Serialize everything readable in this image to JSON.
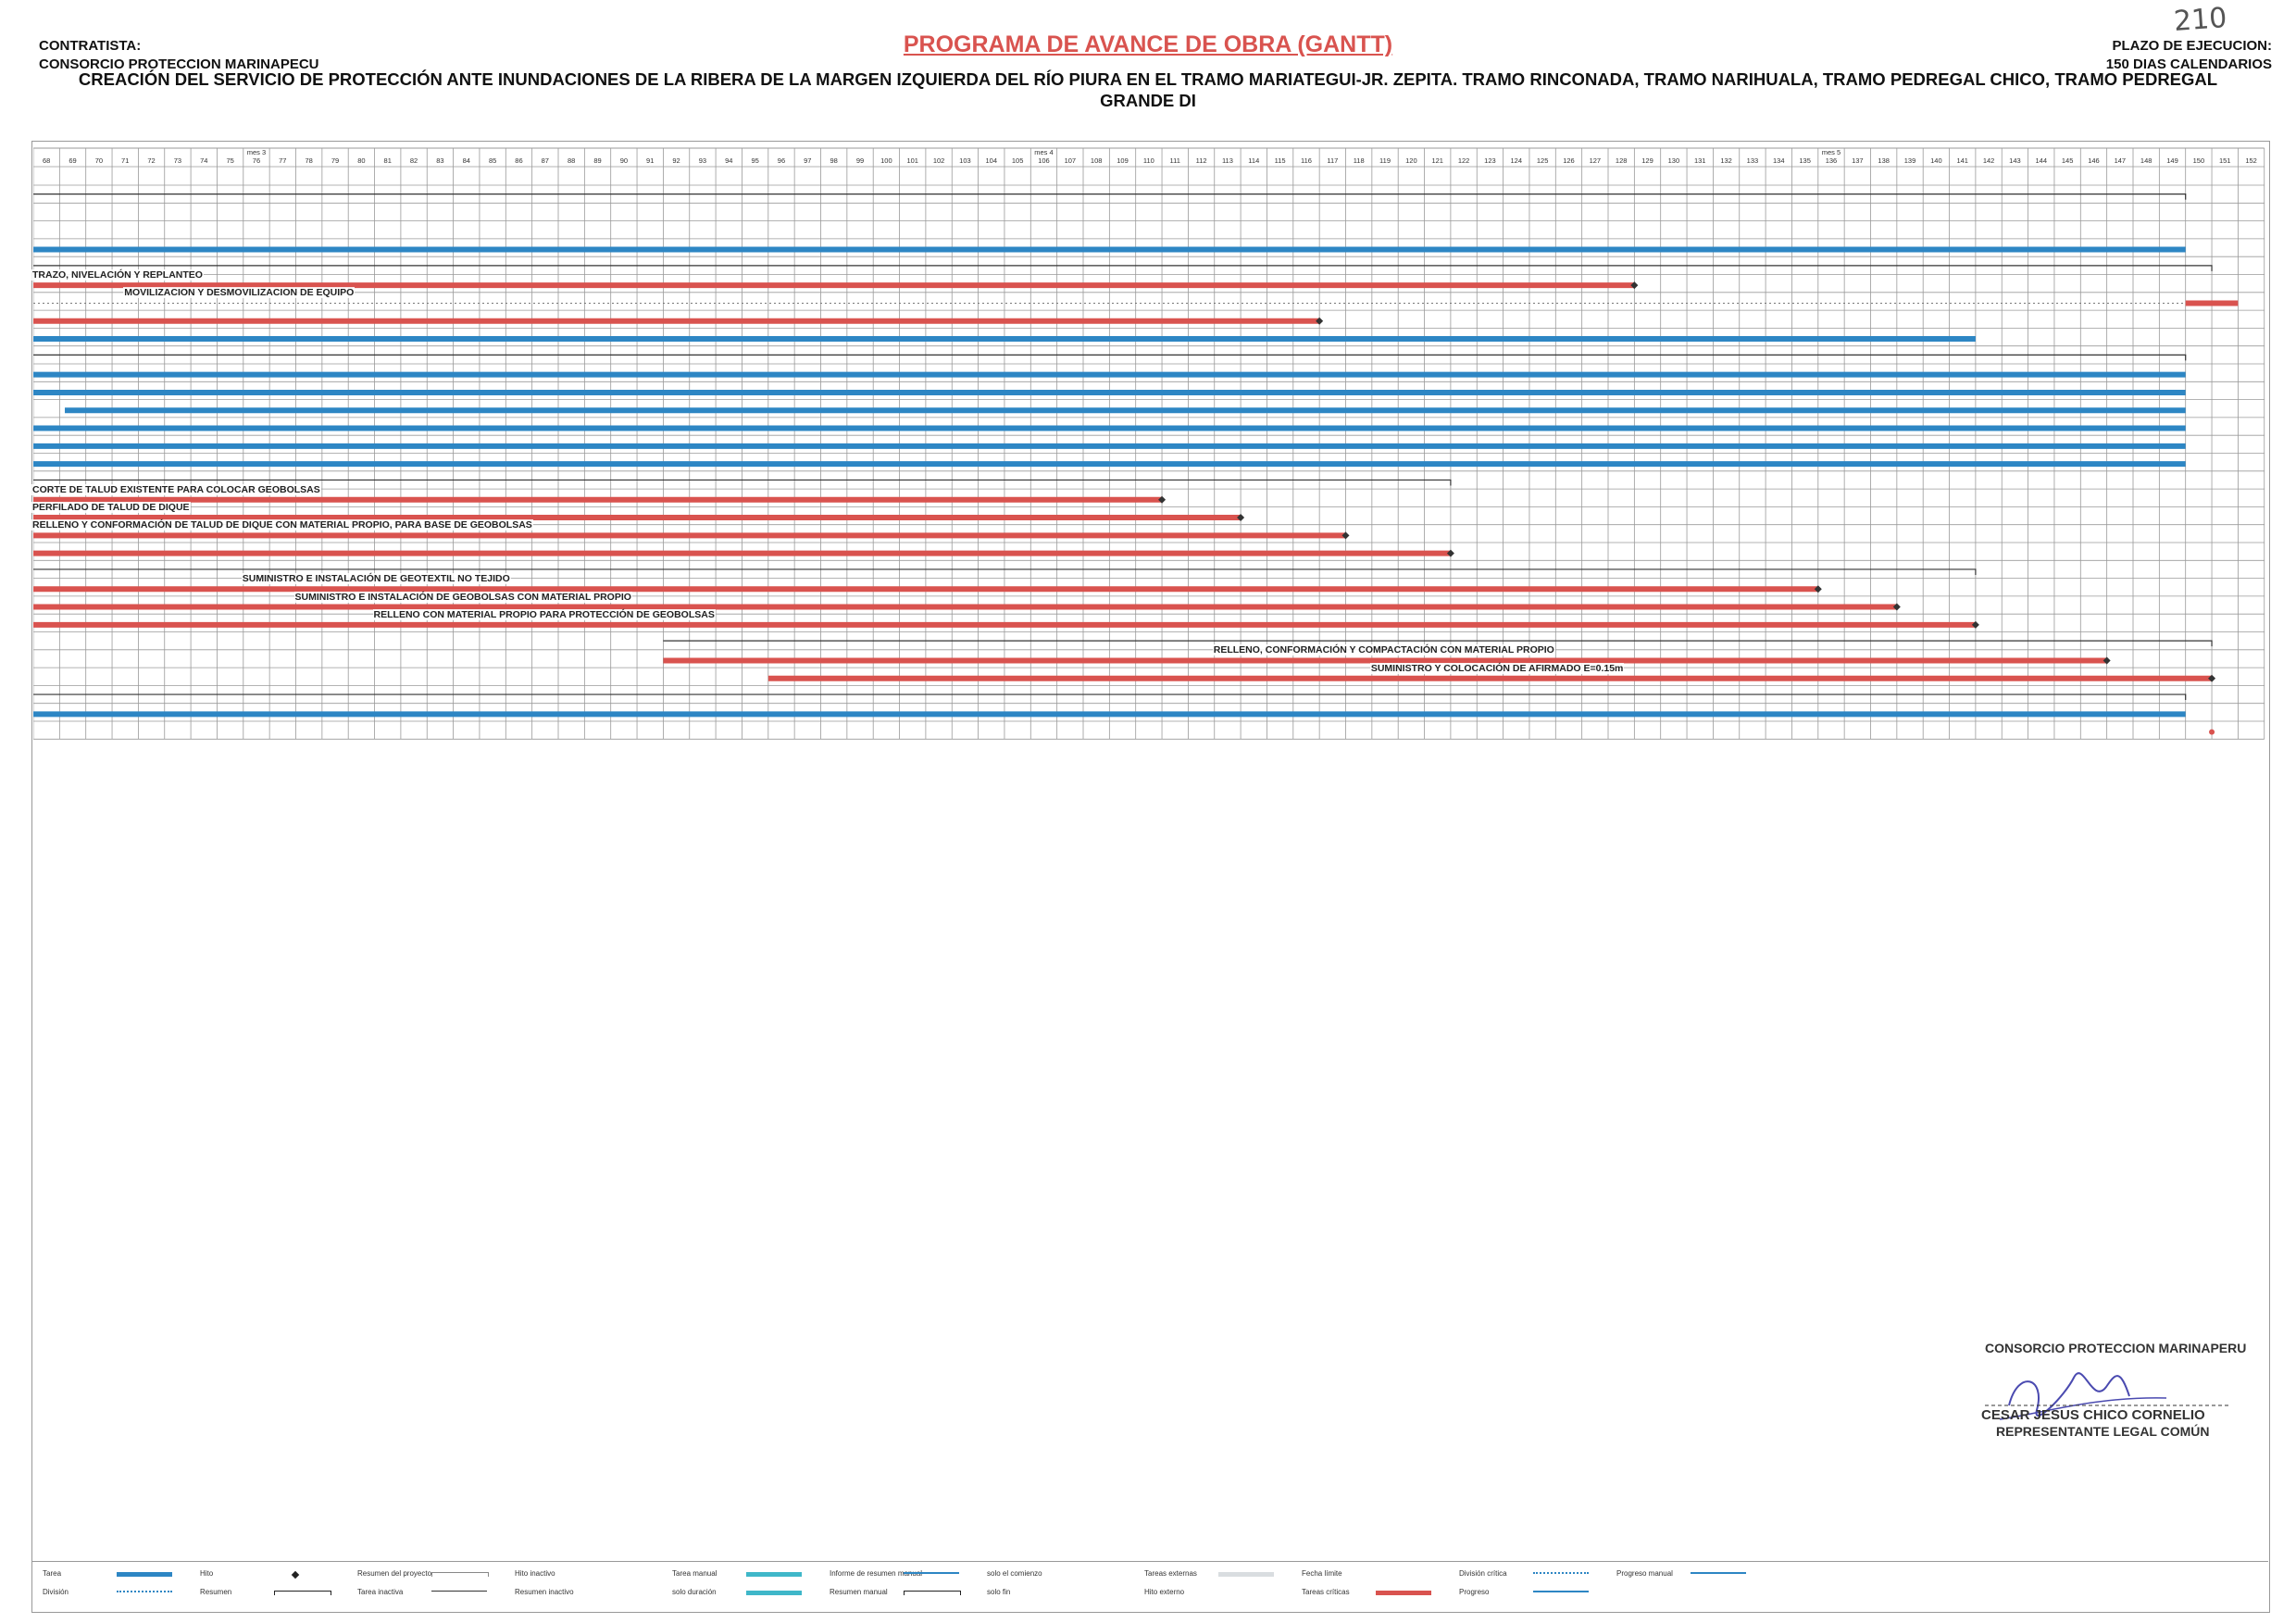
{
  "header": {
    "contractor_label": "CONTRATISTA:",
    "contractor_name": "CONSORCIO PROTECCION MARINAPECU",
    "title": "PROGRAMA DE AVANCE DE OBRA (GANTT)",
    "project_name": "CREACIÓN DEL SERVICIO DE PROTECCIÓN ANTE INUNDACIONES DE LA RIBERA DE LA MARGEN IZQUIERDA DEL RÍO PIURA EN EL TRAMO MARIATEGUI-JR. ZEPITA. TRAMO RINCONADA, TRAMO NARIHUALA, TRAMO PEDREGAL CHICO, TRAMO PEDREGAL GRANDE DI",
    "term_label": "PLAZO DE EJECUCION:",
    "term_value": "150 DIAS CALENDARIOS",
    "page_number": "210"
  },
  "timeline": {
    "first_day": 68,
    "last_day": 152,
    "months": [
      {
        "label": "mes 3",
        "day": 76
      },
      {
        "label": "mes 4",
        "day": 106
      },
      {
        "label": "mes 5",
        "day": 136
      }
    ]
  },
  "colors": {
    "summary_bar": "#2d86c4",
    "critical_bar": "#d9534f",
    "grid": "#9a9a9a",
    "title_red": "#d9534f"
  },
  "rows": [
    {
      "type": "summary_bracket",
      "end": 149
    },
    {
      "type": "none"
    },
    {
      "type": "none"
    },
    {
      "type": "summary",
      "end": 149
    },
    {
      "type": "summary_bracket",
      "end": 150
    },
    {
      "type": "critical",
      "end": 128,
      "label": "TRAZO, NIVELACIÓN Y REPLANTEO",
      "label_day": 68
    },
    {
      "type": "dotted",
      "end": 151,
      "label": "MOVILIZACION Y DESMOVILIZACION DE EQUIPO",
      "label_day": 71.5,
      "mark_end": 150
    },
    {
      "type": "critical",
      "end": 116
    },
    {
      "type": "summary",
      "end": 141
    },
    {
      "type": "summary_bracket",
      "end": 149
    },
    {
      "type": "summary",
      "end": 149
    },
    {
      "type": "summary",
      "end": 149
    },
    {
      "type": "summary",
      "end": 149,
      "start": 69.2
    },
    {
      "type": "summary",
      "end": 149
    },
    {
      "type": "summary",
      "end": 149
    },
    {
      "type": "summary",
      "end": 149
    },
    {
      "type": "summary_bracket",
      "end": 121
    },
    {
      "type": "critical",
      "end": 110,
      "label": "CORTE DE TALUD EXISTENTE PARA COLOCAR GEOBOLSAS",
      "label_day": 68
    },
    {
      "type": "critical",
      "end": 113,
      "label": "PERFILADO DE TALUD DE DIQUE",
      "label_day": 68
    },
    {
      "type": "critical",
      "end": 117,
      "label": "RELLENO Y CONFORMACIÓN DE TALUD DE DIQUE CON MATERIAL PROPIO, PARA BASE DE GEOBOLSAS",
      "label_day": 68
    },
    {
      "type": "critical",
      "end": 121
    },
    {
      "type": "summary_bracket",
      "end": 141
    },
    {
      "type": "critical",
      "end": 135,
      "label": "SUMINISTRO E INSTALACIÓN DE GEOTEXTIL NO TEJIDO",
      "label_day": 76
    },
    {
      "type": "critical",
      "end": 138,
      "label": "SUMINISTRO E INSTALACIÓN DE GEOBOLSAS CON MATERIAL PROPIO",
      "label_day": 78
    },
    {
      "type": "critical",
      "end": 141,
      "label": "RELLENO CON MATERIAL PROPIO PARA PROTECCIÓN DE GEOBOLSAS",
      "label_day": 81
    },
    {
      "type": "summary_bracket",
      "end": 150,
      "start": 92
    },
    {
      "type": "critical",
      "end": 146,
      "start": 92,
      "label": "RELLENO, CONFORMACIÓN Y COMPACTACIÓN CON MATERIAL PROPIO",
      "label_day": 113
    },
    {
      "type": "critical",
      "end": 150,
      "start": 96,
      "label": "SUMINISTRO Y COLOCACIÓN DE AFIRMADO E=0.15m",
      "label_day": 119
    },
    {
      "type": "summary_bracket",
      "end": 149
    },
    {
      "type": "summary",
      "end": 149
    },
    {
      "type": "milestone_dot",
      "end": 150
    }
  ],
  "signature": {
    "company": "CONSORCIO PROTECCION MARINAPERU",
    "name": "CESAR JESUS CHICO CORNELIO",
    "role": "REPRESENTANTE LEGAL COMÚN"
  },
  "legend": [
    {
      "label": "Tarea",
      "symbol": "summary"
    },
    {
      "label": "División",
      "symbol": "dotted"
    },
    {
      "label": "Hito",
      "symbol": "diamond"
    },
    {
      "label": "Resumen",
      "symbol": "bracket"
    },
    {
      "label": "Resumen del proyecto",
      "symbol": "bracket-light"
    },
    {
      "label": "Tarea inactiva",
      "symbol": "thin"
    },
    {
      "label": "Hito inactivo",
      "symbol": "none"
    },
    {
      "label": "Resumen inactivo",
      "symbol": "none"
    },
    {
      "label": "Tarea manual",
      "symbol": "teal"
    },
    {
      "label": "solo duración",
      "symbol": "teal"
    },
    {
      "label": "Informe de resumen manual",
      "symbol": "thin-blue"
    },
    {
      "label": "Resumen manual",
      "symbol": "bracket"
    },
    {
      "label": "solo el comienzo",
      "symbol": "none"
    },
    {
      "label": "solo fin",
      "symbol": "none"
    },
    {
      "label": "Tareas externas",
      "symbol": "light"
    },
    {
      "label": "Hito externo",
      "symbol": "none"
    },
    {
      "label": "Fecha límite",
      "symbol": "none"
    },
    {
      "label": "Tareas críticas",
      "symbol": "critical"
    },
    {
      "label": "División crítica",
      "symbol": "dotted"
    },
    {
      "label": "Progreso",
      "symbol": "thin-blue"
    },
    {
      "label": "Progreso manual",
      "symbol": "thin-blue"
    }
  ]
}
